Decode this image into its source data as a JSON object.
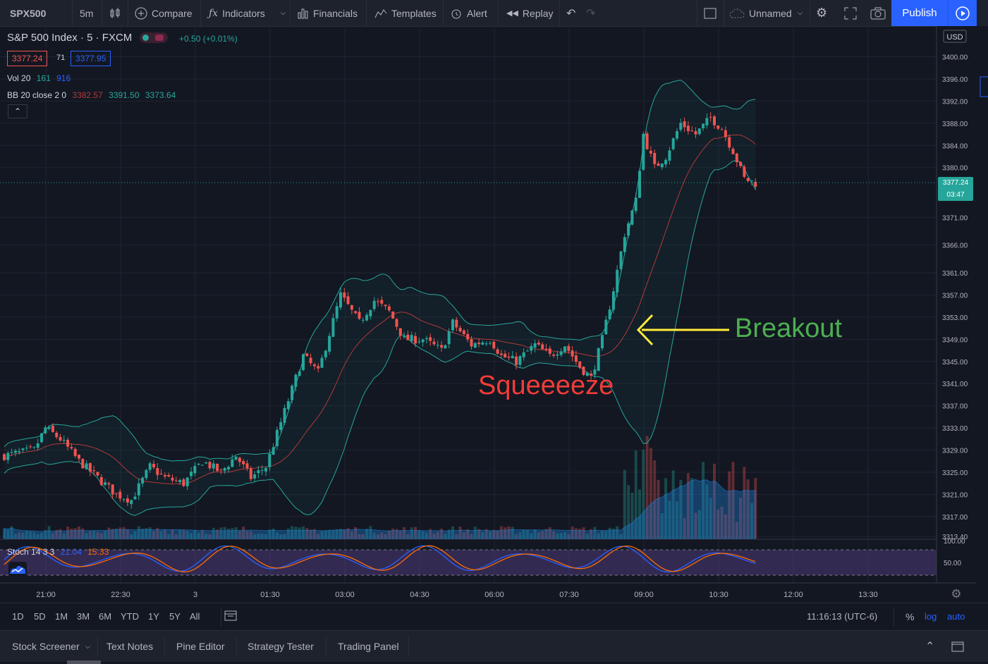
{
  "toolbar": {
    "symbol": "SPX500",
    "interval": "5m",
    "compare": "Compare",
    "indicators": "Indicators",
    "financials": "Financials",
    "templates": "Templates",
    "alert": "Alert",
    "replay": "Replay",
    "layout_name": "Unnamed",
    "publish": "Publish"
  },
  "legend": {
    "title": "S&P 500 Index · 5 · FXCM",
    "change": "+0.50 (+0.01%)",
    "bid": "3377.24",
    "spread": "71",
    "ask": "3377.95",
    "vol_label": "Vol 20",
    "vol_values": [
      "161",
      "916"
    ],
    "bb_label": "BB 20 close 2 0",
    "bb_values": [
      "3382.57",
      "3391.50",
      "3373.64"
    ],
    "stoch_label": "Stoch 14 3 3",
    "stoch_values": [
      "21.04",
      "15.33"
    ]
  },
  "annotations": {
    "squeeze": "Squeeeeze",
    "breakout": "Breakout"
  },
  "colors": {
    "up": "#26a69a",
    "down": "#ef5350",
    "accent": "#2962ff",
    "squeeze_text": "#f23c37",
    "breakout_text": "#4caf50",
    "arrow": "#ffeb3b"
  },
  "chart_data": {
    "type": "candlestick",
    "currency": "USD",
    "price_scale": [
      "3400.00",
      "3396.00",
      "3392.00",
      "3388.00",
      "3384.00",
      "3380.00",
      "3371.00",
      "3366.00",
      "3361.00",
      "3357.00",
      "3353.00",
      "3349.00",
      "3345.00",
      "3341.00",
      "3337.00",
      "3333.00",
      "3329.00",
      "3325.00",
      "3321.00",
      "3317.00",
      "3313.40"
    ],
    "last_price": "3377.24",
    "countdown": "03:47",
    "stoch_scale": [
      "100.00",
      "50.00"
    ],
    "time_labels": [
      "21:00",
      "22:30",
      "3",
      "01:30",
      "03:00",
      "04:30",
      "06:00",
      "07:30",
      "09:00",
      "10:30",
      "12:00",
      "13:30"
    ],
    "scale_type": "log",
    "scale_mode": "auto"
  },
  "bottom": {
    "ranges": [
      "1D",
      "5D",
      "1M",
      "3M",
      "6M",
      "YTD",
      "1Y",
      "5Y",
      "All"
    ],
    "clock": "11:16:13 (UTC-6)",
    "percent": "%",
    "log": "log",
    "auto": "auto"
  },
  "panels": [
    "Stock Screener",
    "Text Notes",
    "Pine Editor",
    "Strategy Tester",
    "Trading Panel"
  ]
}
